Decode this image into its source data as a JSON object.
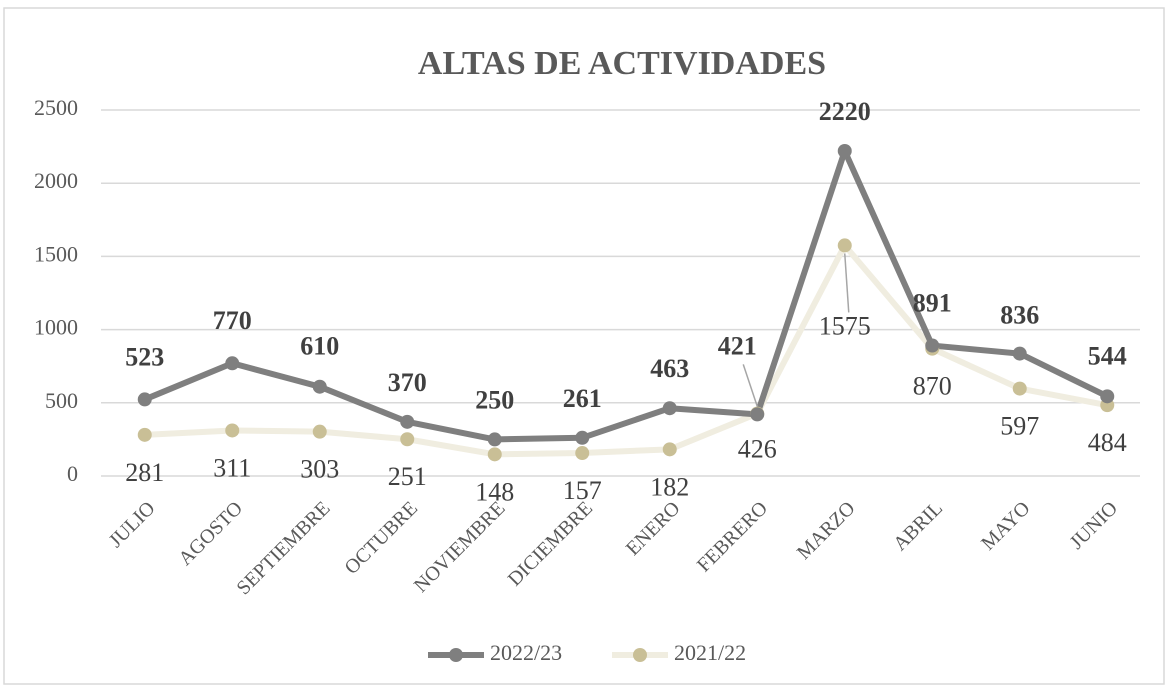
{
  "chart_data": {
    "type": "line",
    "title": "ALTAS DE ACTIVIDADES",
    "categories": [
      "JULIO",
      "AGOSTO",
      "SEPTIEMBRE",
      "OCTUBRE",
      "NOVIEMBRE",
      "DICIEMBRE",
      "ENERO",
      "FEBRERO",
      "MARZO",
      "ABRIL",
      "MAYO",
      "JUNIO"
    ],
    "series": [
      {
        "name": "2022/23",
        "color": "#7f7f7f",
        "values": [
          523,
          770,
          610,
          370,
          250,
          261,
          463,
          421,
          2220,
          891,
          836,
          544
        ]
      },
      {
        "name": "2021/22",
        "color": "#c9bf96",
        "values": [
          281,
          311,
          303,
          251,
          148,
          157,
          182,
          426,
          1575,
          870,
          597,
          484
        ]
      }
    ],
    "ylim": [
      0,
      2500
    ],
    "yticks": [
      0,
      500,
      1000,
      1500,
      2000,
      2500
    ],
    "grid": true,
    "legend": "bottom"
  }
}
